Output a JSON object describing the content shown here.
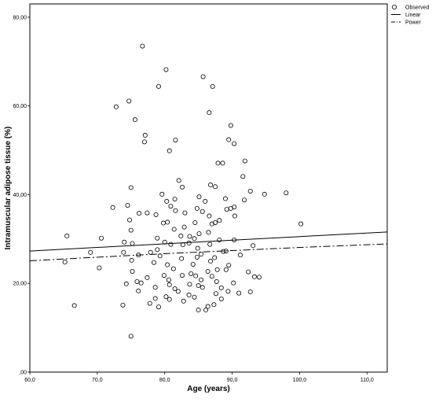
{
  "chart_data": {
    "type": "scatter",
    "xlabel": "Age (years)",
    "ylabel": "Intramuscular adipose tissue (%)",
    "xlim": [
      60,
      113
    ],
    "ylim": [
      0,
      83
    ],
    "x_ticks": [
      60,
      70,
      80,
      90,
      100,
      110
    ],
    "x_tick_labels": [
      "60,0",
      "70,0",
      "80,0",
      "90,0",
      "100,0",
      "110,0"
    ],
    "y_ticks": [
      0,
      20,
      40,
      60,
      80
    ],
    "y_tick_labels": [
      ",00",
      "20,00",
      "40,00",
      "60,00",
      "80,00"
    ],
    "grid": false,
    "legend_position": "top-right",
    "legend": [
      {
        "label": "Observed",
        "marker": "circle"
      },
      {
        "label": "Linear",
        "line": "solid"
      },
      {
        "label": "Power",
        "line": "dash-dot"
      }
    ],
    "series": [
      {
        "name": "Observed",
        "kind": "scatter",
        "points": [
          [
            76.7,
            73.5
          ],
          [
            80.2,
            68.2
          ],
          [
            85.7,
            66.6
          ],
          [
            87.1,
            64.4
          ],
          [
            79.1,
            64.4
          ],
          [
            74.7,
            61.1
          ],
          [
            72.8,
            59.8
          ],
          [
            86.6,
            58.5
          ],
          [
            75.6,
            56.9
          ],
          [
            89.8,
            55.6
          ],
          [
            77.1,
            53.4
          ],
          [
            89.5,
            52.4
          ],
          [
            81.6,
            52.3
          ],
          [
            77.0,
            51.9
          ],
          [
            90.3,
            51.5
          ],
          [
            80.7,
            49.9
          ],
          [
            91.9,
            47.6
          ],
          [
            87.9,
            47.1
          ],
          [
            88.6,
            47.1
          ],
          [
            91.6,
            44.1
          ],
          [
            82.1,
            43.2
          ],
          [
            86.8,
            42.2
          ],
          [
            87.5,
            41.8
          ],
          [
            82.6,
            41.7
          ],
          [
            75.0,
            41.6
          ],
          [
            92.7,
            40.8
          ],
          [
            94.8,
            40.1
          ],
          [
            98.0,
            40.4
          ],
          [
            79.6,
            40.1
          ],
          [
            85.1,
            39.5
          ],
          [
            81.5,
            39.0
          ],
          [
            89.0,
            39.1
          ],
          [
            91.8,
            38.8
          ],
          [
            80.3,
            38.5
          ],
          [
            86.0,
            38.5
          ],
          [
            80.9,
            37.4
          ],
          [
            74.5,
            37.6
          ],
          [
            90.3,
            37.2
          ],
          [
            84.8,
            36.9
          ],
          [
            89.2,
            36.7
          ],
          [
            89.8,
            36.9
          ],
          [
            72.3,
            37.1
          ],
          [
            81.6,
            36.4
          ],
          [
            85.6,
            36.2
          ],
          [
            83.0,
            35.9
          ],
          [
            77.4,
            35.9
          ],
          [
            76.2,
            35.8
          ],
          [
            78.7,
            35.5
          ],
          [
            86.6,
            35.2
          ],
          [
            90.4,
            35.2
          ],
          [
            88.1,
            34.2
          ],
          [
            74.8,
            34.3
          ],
          [
            79.8,
            33.6
          ],
          [
            80.4,
            33.8
          ],
          [
            84.5,
            33.7
          ],
          [
            87.0,
            33.4
          ],
          [
            87.5,
            33.7
          ],
          [
            100.2,
            33.4
          ],
          [
            82.9,
            32.7
          ],
          [
            81.4,
            32.2
          ],
          [
            75.0,
            32.0
          ],
          [
            86.5,
            31.5
          ],
          [
            85.1,
            31.2
          ],
          [
            82.4,
            30.7
          ],
          [
            83.7,
            30.6
          ],
          [
            65.5,
            30.7
          ],
          [
            70.6,
            30.2
          ],
          [
            78.9,
            30.2
          ],
          [
            84.4,
            30.1
          ],
          [
            88.1,
            29.8
          ],
          [
            90.3,
            29.8
          ],
          [
            75.2,
            29.0
          ],
          [
            80.0,
            29.3
          ],
          [
            74.0,
            29.3
          ],
          [
            83.6,
            29.1
          ],
          [
            82.7,
            28.7
          ],
          [
            93.1,
            28.5
          ],
          [
            86.7,
            28.8
          ],
          [
            80.9,
            28.8
          ],
          [
            84.9,
            27.9
          ],
          [
            78.9,
            27.6
          ],
          [
            88.7,
            27.2
          ],
          [
            89.1,
            27.3
          ],
          [
            73.9,
            27.0
          ],
          [
            69.0,
            27.0
          ],
          [
            77.9,
            27.0
          ],
          [
            85.4,
            26.6
          ],
          [
            91.2,
            26.4
          ],
          [
            79.3,
            26.2
          ],
          [
            84.8,
            25.9
          ],
          [
            82.5,
            25.6
          ],
          [
            87.4,
            25.8
          ],
          [
            76.1,
            26.4
          ],
          [
            75.1,
            25.2
          ],
          [
            86.8,
            25.0
          ],
          [
            65.2,
            24.8
          ],
          [
            78.4,
            24.7
          ],
          [
            89.5,
            24.1
          ],
          [
            84.2,
            24.3
          ],
          [
            80.4,
            24.2
          ],
          [
            70.3,
            23.5
          ],
          [
            81.3,
            23.3
          ],
          [
            87.8,
            23.1
          ],
          [
            89.1,
            23.1
          ],
          [
            86.4,
            22.7
          ],
          [
            92.4,
            22.6
          ],
          [
            83.9,
            22.2
          ],
          [
            75.2,
            22.7
          ],
          [
            84.6,
            21.7
          ],
          [
            82.6,
            21.8
          ],
          [
            79.9,
            21.8
          ],
          [
            87.0,
            21.6
          ],
          [
            93.3,
            21.5
          ],
          [
            77.4,
            21.3
          ],
          [
            94.0,
            21.4
          ],
          [
            85.4,
            20.8
          ],
          [
            80.6,
            20.8
          ],
          [
            87.7,
            20.4
          ],
          [
            75.9,
            20.4
          ],
          [
            90.2,
            20.1
          ],
          [
            76.5,
            20.1
          ],
          [
            83.7,
            19.8
          ],
          [
            74.3,
            19.9
          ],
          [
            85.0,
            19.5
          ],
          [
            80.7,
            19.7
          ],
          [
            81.5,
            18.8
          ],
          [
            85.6,
            19.1
          ],
          [
            78.6,
            19.1
          ],
          [
            88.4,
            19.0
          ],
          [
            89.4,
            18.2
          ],
          [
            82.0,
            18.2
          ],
          [
            76.1,
            18.3
          ],
          [
            87.6,
            17.7
          ],
          [
            91.0,
            17.8
          ],
          [
            92.7,
            18.1
          ],
          [
            83.6,
            17.4
          ],
          [
            80.2,
            17.0
          ],
          [
            84.4,
            16.9
          ],
          [
            88.4,
            16.5
          ],
          [
            78.6,
            16.6
          ],
          [
            80.7,
            16.4
          ],
          [
            82.8,
            16.0
          ],
          [
            73.8,
            15.1
          ],
          [
            66.6,
            15.0
          ],
          [
            77.8,
            15.5
          ],
          [
            87.3,
            15.2
          ],
          [
            79.1,
            14.7
          ],
          [
            86.4,
            14.8
          ],
          [
            85.0,
            14.0
          ],
          [
            86.1,
            14.0
          ],
          [
            75.0,
            8.1
          ]
        ]
      },
      {
        "name": "Linear",
        "kind": "line",
        "style": "solid",
        "points": [
          [
            60.0,
            27.3
          ],
          [
            113.0,
            31.6
          ]
        ]
      },
      {
        "name": "Power",
        "kind": "line",
        "style": "dash-dot",
        "points": [
          [
            60.0,
            25.1
          ],
          [
            70.0,
            25.9
          ],
          [
            80.0,
            26.7
          ],
          [
            90.0,
            27.4
          ],
          [
            100.0,
            28.1
          ],
          [
            113.0,
            28.9
          ]
        ]
      }
    ]
  }
}
